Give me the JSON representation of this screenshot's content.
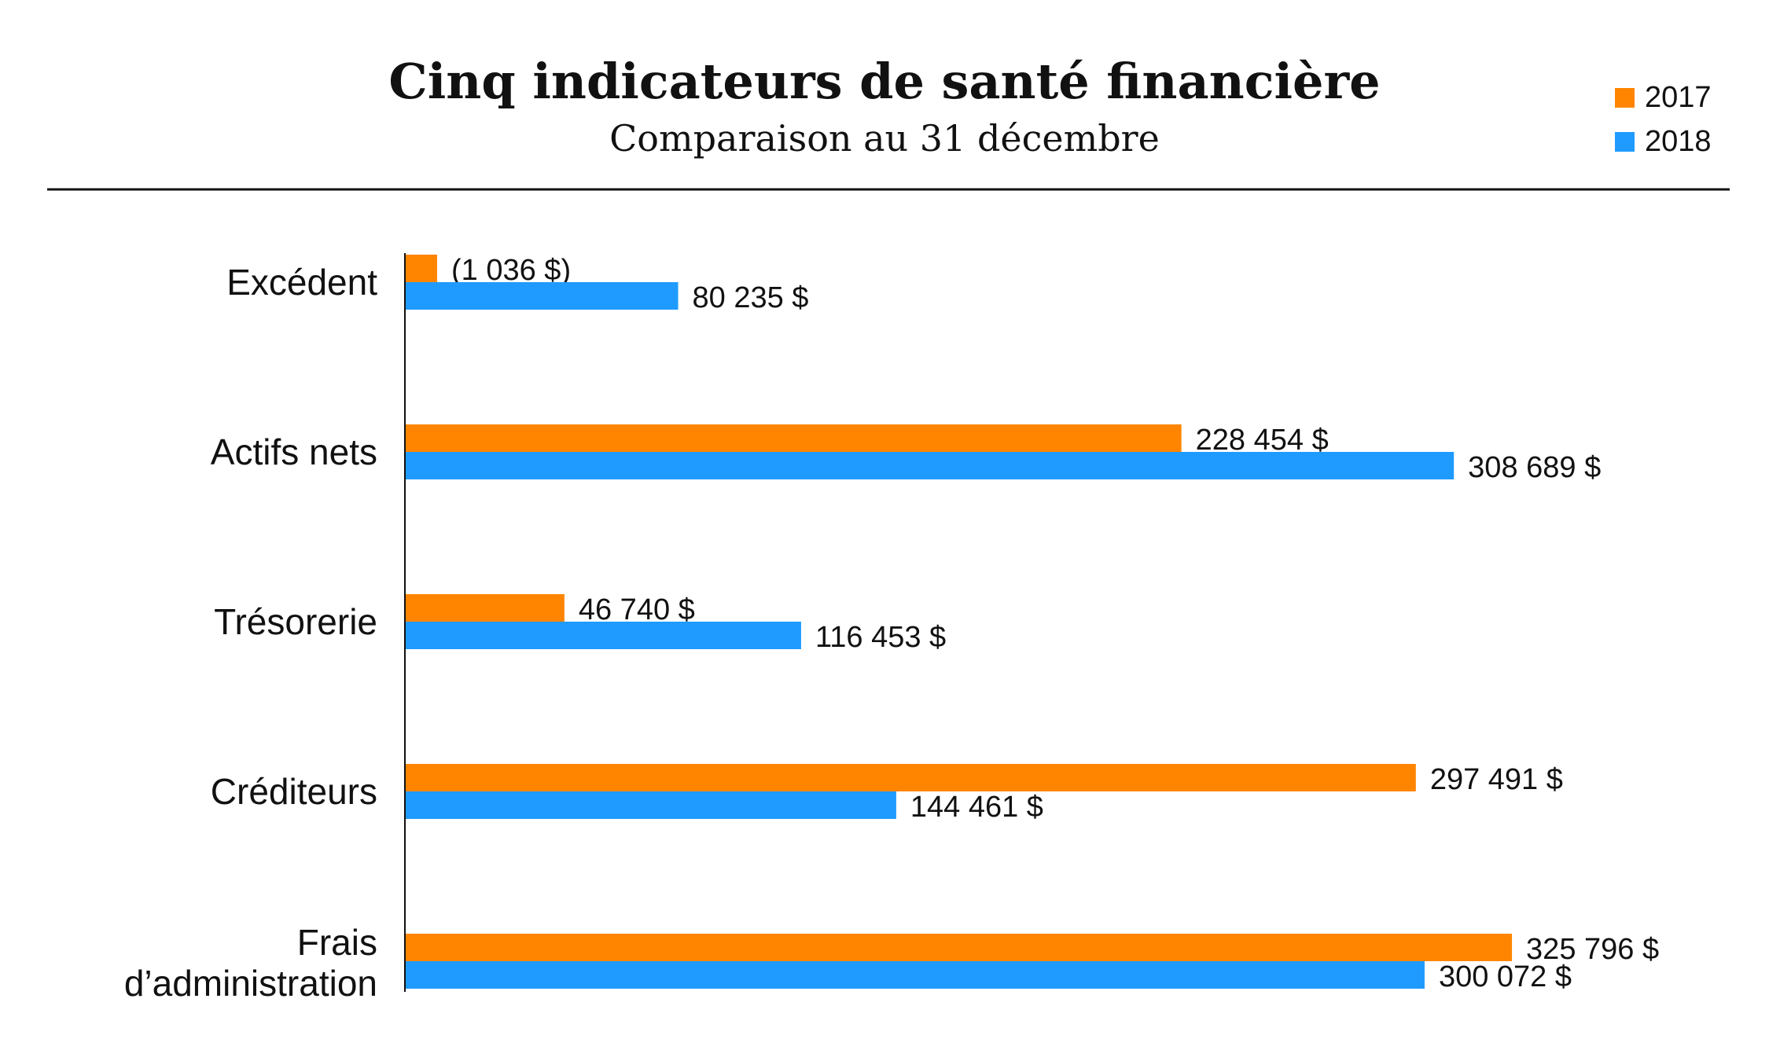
{
  "chart_data": {
    "type": "bar",
    "orientation": "horizontal",
    "title": "Cinq indicateurs de santé financière",
    "subtitle": "Comparaison au 31 décembre",
    "categories": [
      "Excédent",
      "Actifs nets",
      "Trésorerie",
      "Créditeurs",
      "Frais d’administration"
    ],
    "series": [
      {
        "name": "2017",
        "color": "#ff8500",
        "values": [
          -1036,
          228454,
          46740,
          297491,
          325796
        ],
        "labels": [
          "(1 036 $)",
          "228 454 $",
          "46 740 $",
          "297 491 $",
          "325 796 $"
        ]
      },
      {
        "name": "2018",
        "color": "#1f9bff",
        "values": [
          80235,
          308689,
          116453,
          144461,
          300072
        ],
        "labels": [
          "80 235 $",
          "308 689 $",
          "116 453 $",
          "144 461 $",
          "300 072 $"
        ]
      }
    ],
    "xlim": [
      0,
      345000
    ],
    "grid": false,
    "legend_position": "top-right"
  }
}
